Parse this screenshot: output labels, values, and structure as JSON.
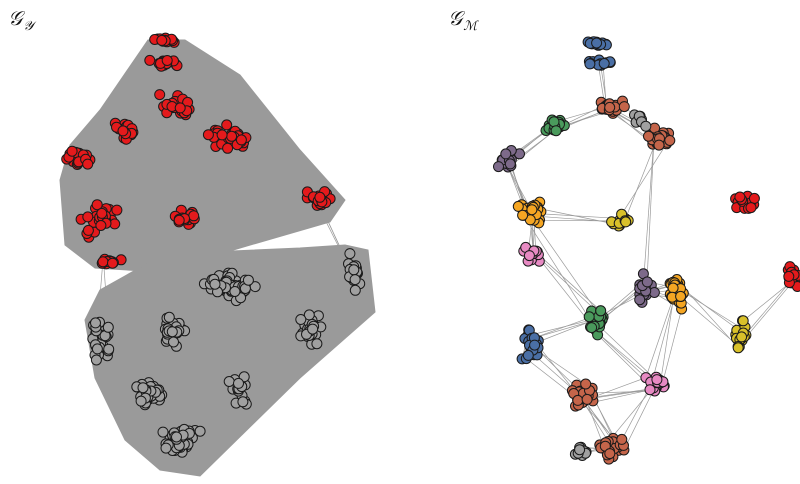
{
  "panels": [
    {
      "label_main": "𝒢",
      "label_sub": "𝒴"
    },
    {
      "label_main": "𝒢",
      "label_sub": "ℳ"
    }
  ],
  "colors": {
    "edge": "#9a9a9a",
    "node_stroke": "#1a1a1a",
    "red": "#e41a1c",
    "gray": "#a0a0a0",
    "blue": "#4a6fa5",
    "brown": "#c5654a",
    "green": "#4a9a5c",
    "purple": "#7d6a8a",
    "orange": "#f5a623",
    "yellow": "#d9c12a",
    "pink": "#e78ac3"
  }
}
